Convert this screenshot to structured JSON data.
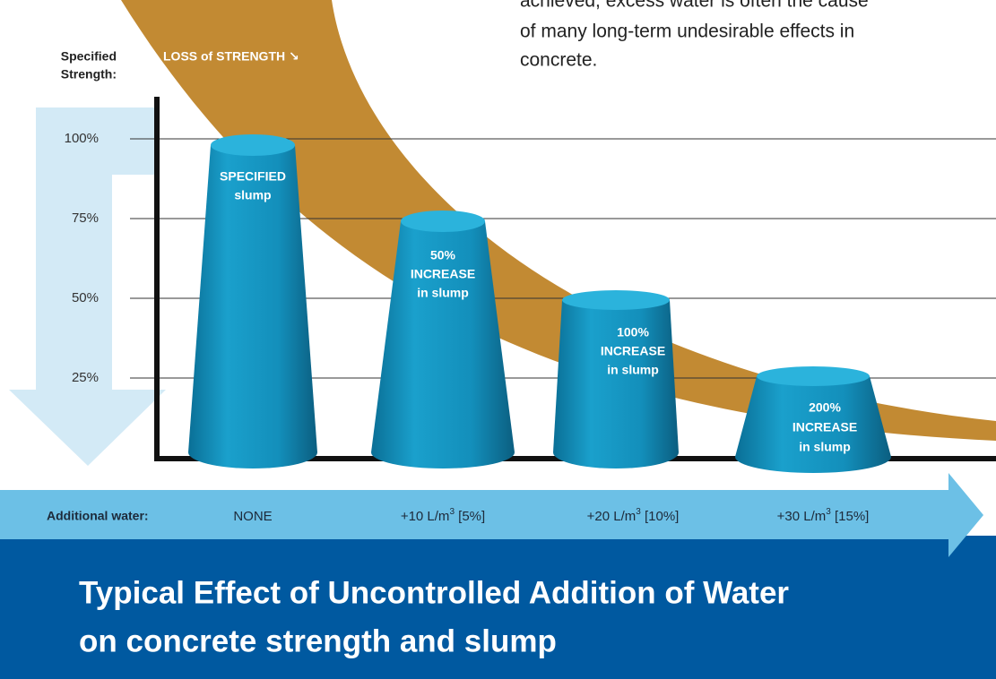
{
  "intro_text": [
    "achieved, excess water is often the cause",
    "of many long-term undesirable effects in",
    "concrete."
  ],
  "y_axis": {
    "label": [
      "Specified",
      "Strength:"
    ],
    "ticks": [
      "100%",
      "75%",
      "50%",
      "25%"
    ]
  },
  "curve_label": "LOSS of STRENGTH ↘",
  "cones": [
    {
      "label": [
        "SPECIFIED",
        "slump"
      ]
    },
    {
      "label": [
        "50%",
        "INCREASE",
        "in slump"
      ]
    },
    {
      "label": [
        "100%",
        "INCREASE",
        "in slump"
      ]
    },
    {
      "label": [
        "200%",
        "INCREASE",
        "in slump"
      ]
    }
  ],
  "x_axis": {
    "label": "Additional water:",
    "values": [
      {
        "base": "NONE"
      },
      {
        "base": "+10 L/m",
        "sup": "3",
        "rest": " [5%]"
      },
      {
        "base": "+20 L/m",
        "sup": "3",
        "rest": " [10%]"
      },
      {
        "base": "+30 L/m",
        "sup": "3",
        "rest": " [15%]"
      }
    ]
  },
  "title": [
    "Typical Effect of Uncontrolled Addition of Water",
    "on concrete strength and slump"
  ]
}
